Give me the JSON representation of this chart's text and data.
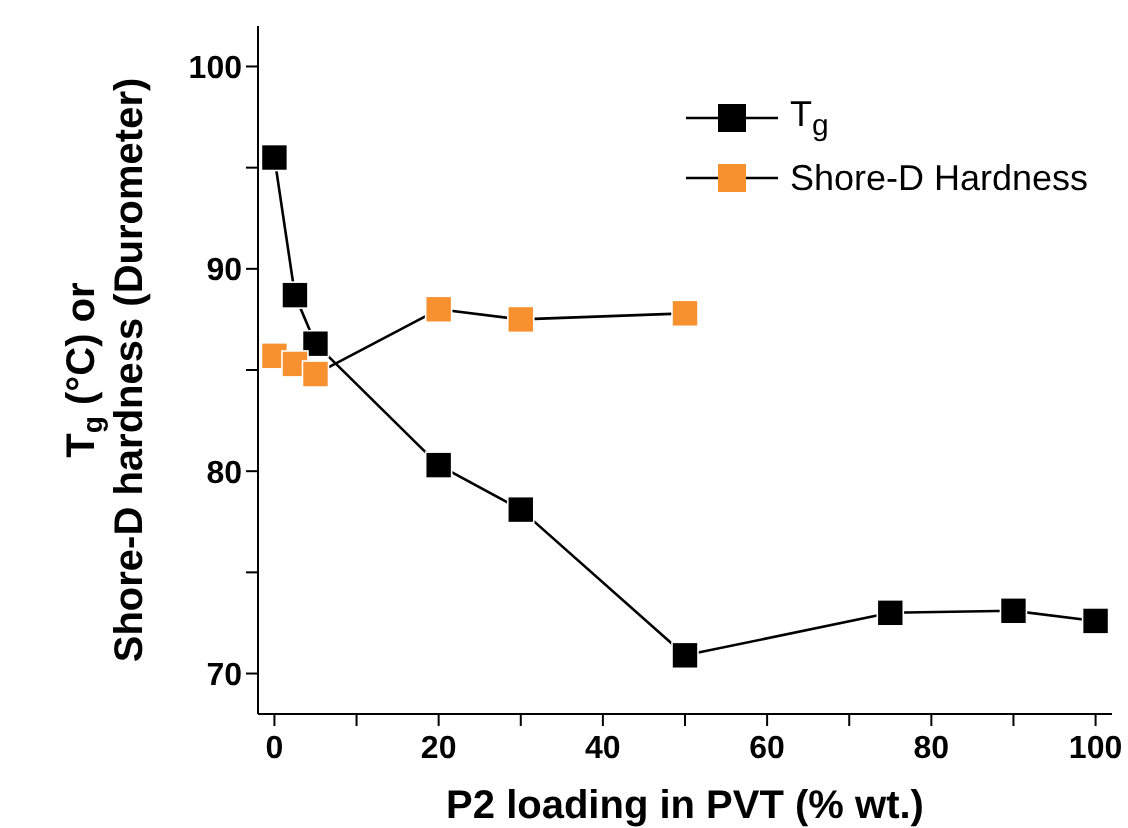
{
  "chart_data": {
    "type": "line",
    "xlabel": "P2 loading in PVT (% wt.)",
    "ylabel": "T$_{g}$ (°C) or\nShore-D hardness (Durometer)",
    "xlim": [
      -2,
      102
    ],
    "ylim": [
      68,
      102
    ],
    "xticks": [
      0,
      {
        "value": 10,
        "label": null
      },
      20,
      {
        "value": 30,
        "label": null
      },
      40,
      {
        "value": 50,
        "label": null
      },
      60,
      {
        "value": 70,
        "label": null
      },
      80,
      {
        "value": 90,
        "label": null
      },
      100
    ],
    "yticks": [
      70,
      {
        "value": 75,
        "label": null
      },
      80,
      {
        "value": 85,
        "label": null
      },
      90,
      {
        "value": 95,
        "label": null
      },
      100
    ],
    "marker": "square",
    "legend": "top right",
    "grid": false,
    "series": [
      {
        "name": "T$_{g}$",
        "color": "#000000",
        "x": [
          0,
          2.5,
          5,
          20,
          30,
          50,
          75,
          90,
          100
        ],
        "values": [
          95.5,
          88.7,
          86.3,
          80.3,
          78.1,
          70.9,
          73.0,
          73.1,
          72.6
        ]
      },
      {
        "name": "Shore-D Hardness",
        "color": "#f7902f",
        "x": [
          0,
          2.5,
          5,
          20,
          30,
          50
        ],
        "values": [
          85.7,
          85.3,
          84.8,
          88.0,
          87.5,
          87.8
        ]
      }
    ]
  }
}
